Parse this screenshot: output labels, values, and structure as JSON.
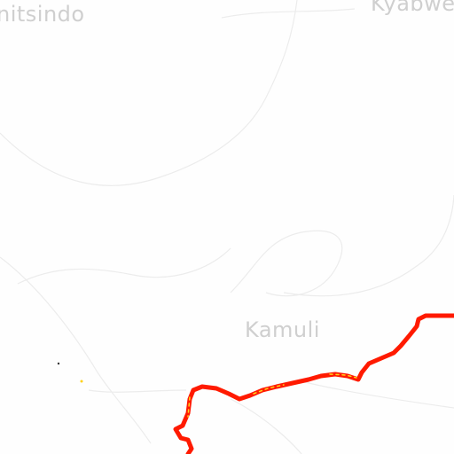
{
  "map": {
    "place_labels": {
      "nitsindo": "nitsindo",
      "kyabwe": "Kyabwe",
      "kamuli": "Kamuli"
    },
    "route": {
      "color": "#ff1a00",
      "highlight_color": "#ffd21a"
    },
    "background_color": "#fefefe",
    "road_color": "#e6e6e6"
  }
}
